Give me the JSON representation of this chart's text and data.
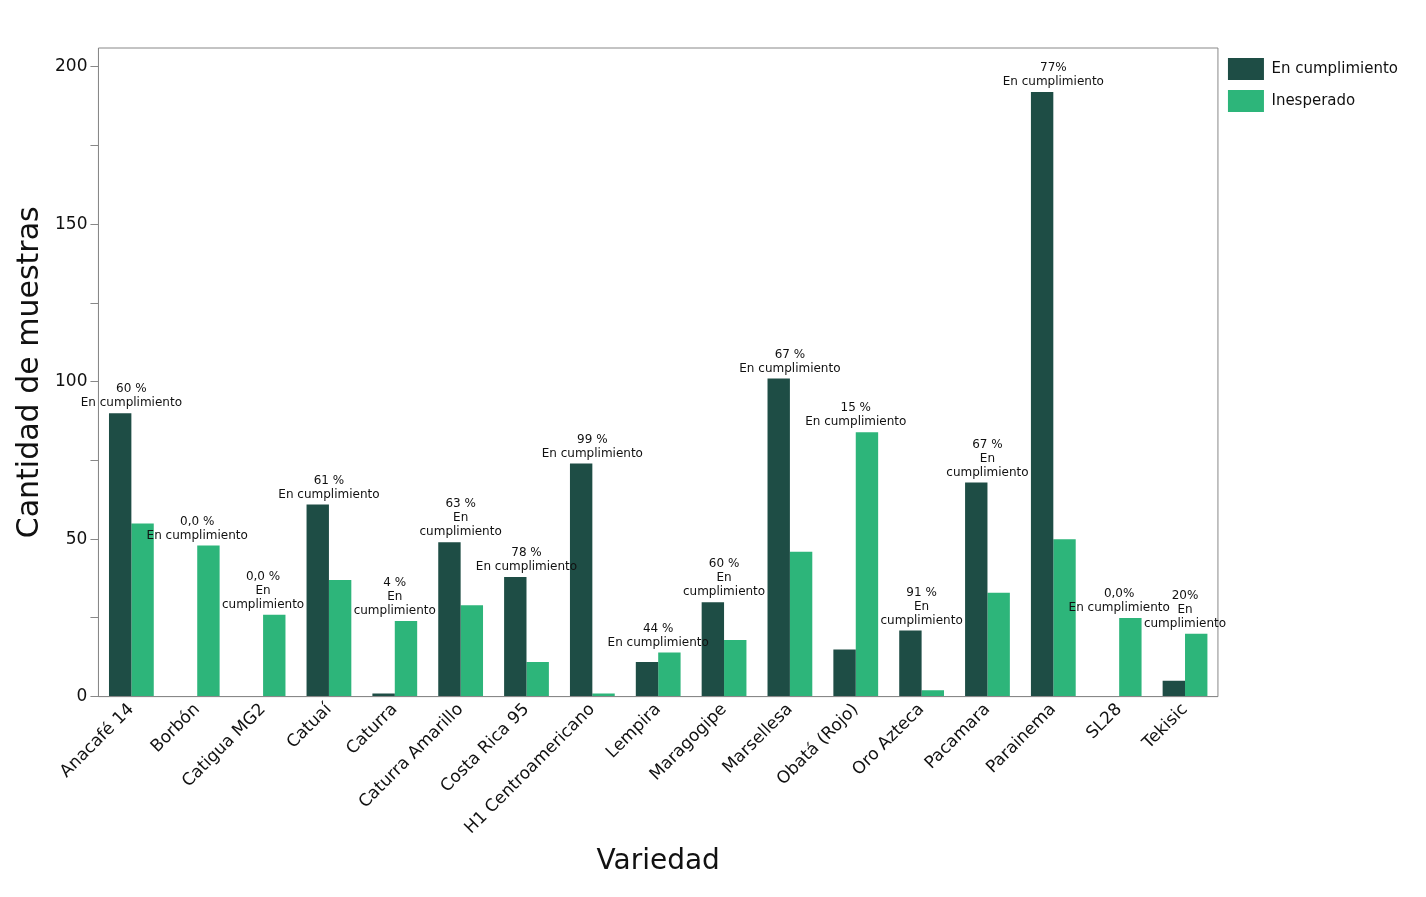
{
  "chart_data": {
    "type": "bar",
    "xlabel": "Variedad",
    "ylabel": "Cantidad de muestras",
    "categories": [
      "Anacafé 14",
      "Borbón",
      "Catigua MG2",
      "Catuaí",
      "Caturra",
      "Caturra Amarillo",
      "Costa Rica 95",
      "H1 Centroamericano",
      "Lempira",
      "Maragogipe",
      "Marsellesa",
      "Obatá (Rojo)",
      "Oro Azteca",
      "Pacamara",
      "Parainema",
      "SL28",
      "Tekisic"
    ],
    "series": [
      {
        "name": "En cumplimiento",
        "color": "#1e4d45",
        "values": [
          90,
          0,
          0,
          61,
          1,
          49,
          38,
          74,
          11,
          30,
          101,
          15,
          21,
          68,
          192,
          0,
          5
        ]
      },
      {
        "name": "Inesperado",
        "color": "#2db57a",
        "values": [
          55,
          48,
          26,
          37,
          24,
          29,
          11,
          1,
          14,
          18,
          46,
          84,
          2,
          33,
          50,
          25,
          20
        ]
      }
    ],
    "ylim": [
      0,
      206
    ],
    "yticks": [
      0,
      {
        "value": 25,
        "label": null
      },
      50,
      {
        "value": 75,
        "label": null
      },
      100,
      {
        "value": 125,
        "label": null
      },
      150,
      {
        "value": 175,
        "label": null
      },
      200
    ],
    "grid": false,
    "legend": "top right",
    "annotations": [
      {
        "text": "60 %\nEn cumplimiento",
        "x": "Anacafé 14",
        "y": 90
      },
      {
        "text": "0,0 %\nEn cumplimiento",
        "x": "Borbón",
        "y": 48
      },
      {
        "text": "0,0 %\nEn\ncumplimiento",
        "x": "Catigua MG2",
        "y": 26
      },
      {
        "text": "61 %\nEn cumplimiento",
        "x": "Catuaí",
        "y": 61
      },
      {
        "text": "4 %\nEn\ncumplimiento",
        "x": "Caturra",
        "y": 24
      },
      {
        "text": "63 %\nEn\ncumplimiento",
        "x": "Caturra Amarillo",
        "y": 49
      },
      {
        "text": "78 %\nEn cumplimiento",
        "x": "Costa Rica 95",
        "y": 38
      },
      {
        "text": "99 %\nEn cumplimiento",
        "x": "H1 Centroamericano",
        "y": 74
      },
      {
        "text": "44 %\nEn cumplimiento",
        "x": "Lempira",
        "y": 14
      },
      {
        "text": "60 %\nEn\ncumplimiento",
        "x": "Maragogipe",
        "y": 30
      },
      {
        "text": "67 %\nEn cumplimiento",
        "x": "Marsellesa",
        "y": 101
      },
      {
        "text": "15 %\nEn cumplimiento",
        "x": "Obatá (Rojo)",
        "y": 84
      },
      {
        "text": "91 %\nEn\ncumplimiento",
        "x": "Oro Azteca",
        "y": 21
      },
      {
        "text": "67 %\nEn\ncumplimiento",
        "x": "Pacamara",
        "y": 68
      },
      {
        "text": "77%\nEn cumplimiento",
        "x": "Parainema",
        "y": 192
      },
      {
        "text": "0,0%\nEn cumplimiento",
        "x": "SL28",
        "y": 25
      },
      {
        "text": "20%\nEn\ncumplimiento",
        "x": "Tekisic",
        "y": 20
      }
    ]
  }
}
